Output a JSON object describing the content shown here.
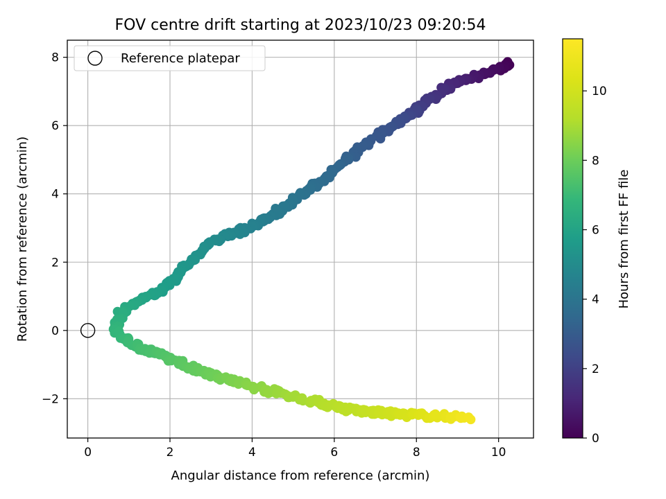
{
  "chart_data": {
    "type": "scatter",
    "title": "FOV centre drift starting at 2023/10/23 09:20:54",
    "xlabel": "Angular distance from reference (arcmin)",
    "ylabel": "Rotation from reference (arcmin)",
    "xlim": [
      -0.5,
      10.85
    ],
    "ylim": [
      -3.15,
      8.5
    ],
    "xticks": [
      0,
      2,
      4,
      6,
      8,
      10
    ],
    "yticks": [
      -2,
      0,
      2,
      4,
      6,
      8
    ],
    "grid": true,
    "legend": {
      "position": "top-left",
      "entries": [
        "Reference platepar"
      ]
    },
    "reference_point": {
      "x": 0,
      "y": 0
    },
    "colorbar": {
      "label": "Hours from first FF file",
      "colormap": "viridis",
      "range": [
        0,
        11.5
      ],
      "ticks": [
        0,
        2,
        4,
        6,
        8,
        10
      ]
    },
    "anchors": [
      [
        10.3,
        7.8,
        0.0
      ],
      [
        9.6,
        7.5,
        0.5
      ],
      [
        9.0,
        7.3,
        1.0
      ],
      [
        8.6,
        7.0,
        1.4
      ],
      [
        8.2,
        6.6,
        1.8
      ],
      [
        7.8,
        6.3,
        2.2
      ],
      [
        7.4,
        6.0,
        2.6
      ],
      [
        6.5,
        5.2,
        3.1
      ],
      [
        5.7,
        4.4,
        3.6
      ],
      [
        5.2,
        4.0,
        3.9
      ],
      [
        4.4,
        3.3,
        4.3
      ],
      [
        3.9,
        3.0,
        4.6
      ],
      [
        3.0,
        2.6,
        5.0
      ],
      [
        2.5,
        2.0,
        5.35
      ],
      [
        1.8,
        1.2,
        5.75
      ],
      [
        1.3,
        0.9,
        6.05
      ],
      [
        0.8,
        0.5,
        6.4
      ],
      [
        0.65,
        0.0,
        6.75
      ],
      [
        1.1,
        -0.4,
        7.1
      ],
      [
        1.9,
        -0.8,
        7.5
      ],
      [
        2.8,
        -1.2,
        7.9
      ],
      [
        3.6,
        -1.5,
        8.3
      ],
      [
        4.4,
        -1.75,
        8.65
      ],
      [
        5.4,
        -2.05,
        9.05
      ],
      [
        6.5,
        -2.35,
        9.5
      ],
      [
        7.5,
        -2.45,
        10.0
      ],
      [
        8.3,
        -2.5,
        10.5
      ],
      [
        9.3,
        -2.55,
        11.2
      ]
    ]
  }
}
